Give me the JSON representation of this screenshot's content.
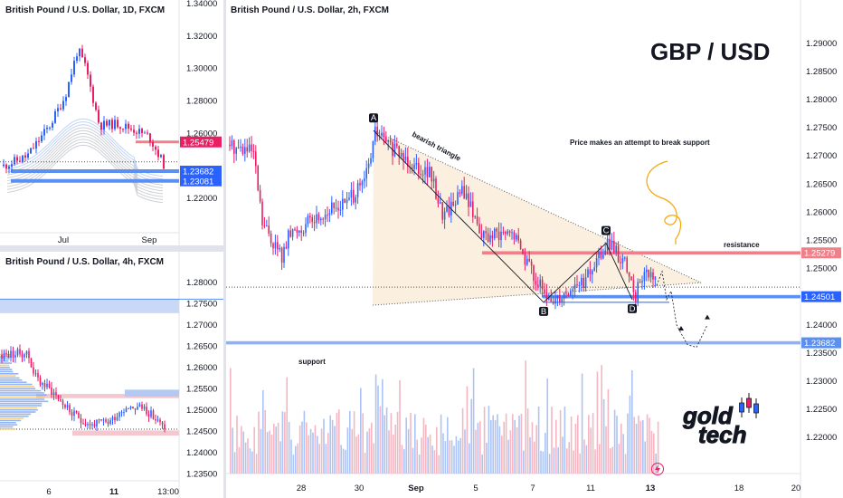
{
  "panels": {
    "daily": {
      "title": "British Pound / U.S. Dollar, 1D, FXCM"
    },
    "h4": {
      "title": "British Pound / U.S. Dollar, 4h, FXCM"
    },
    "h2": {
      "title": "British Pound / U.S. Dollar, 2h, FXCM"
    }
  },
  "headline": "GBP / USD",
  "annotations": {
    "bearish_triangle": "bearish triangle",
    "attempt": "Price makes an attempt to break support",
    "resistance": "resistance",
    "support": "support",
    "point_a": "A",
    "point_b": "B",
    "point_c": "C",
    "point_d": "D"
  },
  "logo": {
    "line1": "gold",
    "line2": "tech"
  },
  "colors": {
    "up": "#2962ff",
    "down": "#e91e63",
    "resistance": "#f07f8a",
    "support": "#5b8ff0",
    "accent": "#f7a600"
  },
  "chart_data": [
    {
      "type": "candlestick",
      "id": "daily",
      "yticks": [
        "1.34000",
        "1.32000",
        "1.30000",
        "1.28000",
        "1.26000",
        "1.22000"
      ],
      "xticks": [
        "Jul",
        "Sep"
      ],
      "price_tags": [
        {
          "label": "1.25479",
          "value": 1.25479,
          "color": "#e91e63"
        },
        {
          "label": "1.23682",
          "value": 1.23682,
          "color": "#2962ff"
        },
        {
          "label": "1.23081",
          "value": 1.23081,
          "color": "#2962ff"
        }
      ],
      "ylim": [
        1.2,
        1.34
      ]
    },
    {
      "type": "candlestick",
      "id": "h4",
      "yticks": [
        "1.28000",
        "1.27500",
        "1.27000",
        "1.26500",
        "1.26000",
        "1.25500",
        "1.25000",
        "1.24500",
        "1.24000",
        "1.23500"
      ],
      "xticks": [
        "6",
        "11",
        "13:00"
      ],
      "ylim": [
        1.234,
        1.283
      ]
    },
    {
      "type": "candlestick",
      "id": "h2",
      "yticks": [
        "1.29000",
        "1.28500",
        "1.28000",
        "1.27500",
        "1.27000",
        "1.26500",
        "1.26000",
        "1.25500",
        "1.25000",
        "1.24500",
        "1.24000",
        "1.23500",
        "1.23000",
        "1.22500",
        "1.22000"
      ],
      "xticks": [
        "28",
        "30",
        "Sep",
        "5",
        "7",
        "11",
        "13",
        "18",
        "20"
      ],
      "price_tags": [
        {
          "label": "1.25279",
          "value": 1.25279,
          "color": "#f07f8a"
        },
        {
          "label": "1.24501",
          "value": 1.24501,
          "color": "#2962ff"
        },
        {
          "label": "1.23682",
          "value": 1.23682,
          "color": "#5b8ff0"
        }
      ],
      "pattern_points": [
        {
          "label": "A",
          "value": 1.2745
        },
        {
          "label": "B",
          "value": 1.244
        },
        {
          "label": "C",
          "value": 1.2545
        },
        {
          "label": "D",
          "value": 1.2445
        }
      ],
      "ylim": [
        1.2165,
        1.2935
      ]
    }
  ]
}
